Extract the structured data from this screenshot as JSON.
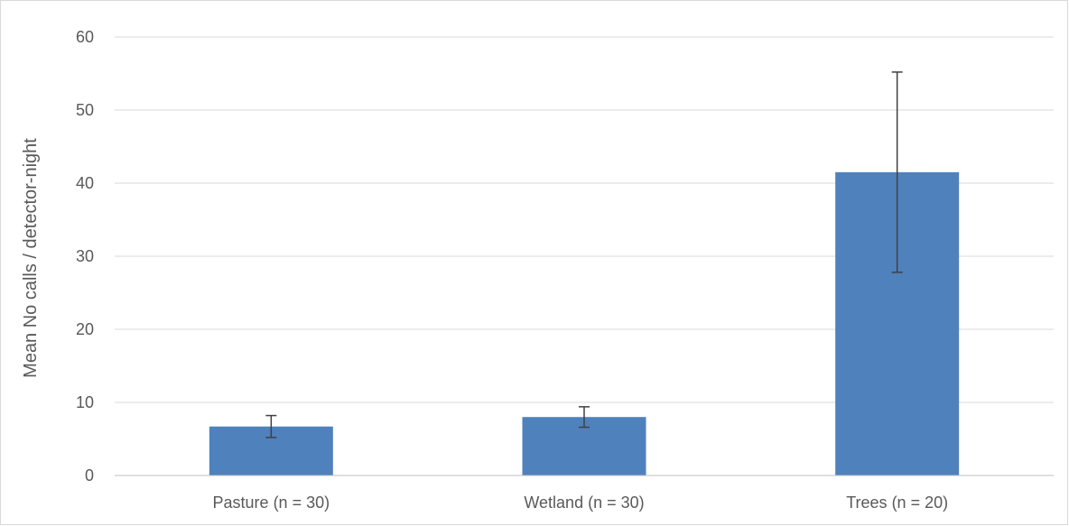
{
  "chart_data": {
    "type": "bar",
    "title": "",
    "xlabel": "",
    "ylabel": "Mean No calls / detector-night",
    "categories": [
      "Pasture (n = 30)",
      "Wetland (n = 30)",
      "Trees (n = 20)"
    ],
    "values": [
      6.7,
      8.0,
      41.5
    ],
    "error_bars": [
      {
        "low": 5.2,
        "high": 8.2
      },
      {
        "low": 6.6,
        "high": 9.4
      },
      {
        "low": 27.8,
        "high": 55.2
      }
    ],
    "ylim": [
      0,
      60
    ],
    "yticks": [
      0,
      10,
      20,
      30,
      40,
      50,
      60
    ],
    "ytick_labels": [
      "0",
      "10",
      "20",
      "30",
      "40",
      "50",
      "60"
    ],
    "grid": true,
    "legend": "none",
    "colors": {
      "bar": "#4f81bd",
      "error_bar": "#404040",
      "grid": "#d9d9d9",
      "axis": "#bfbfbf",
      "text": "#595959"
    }
  }
}
